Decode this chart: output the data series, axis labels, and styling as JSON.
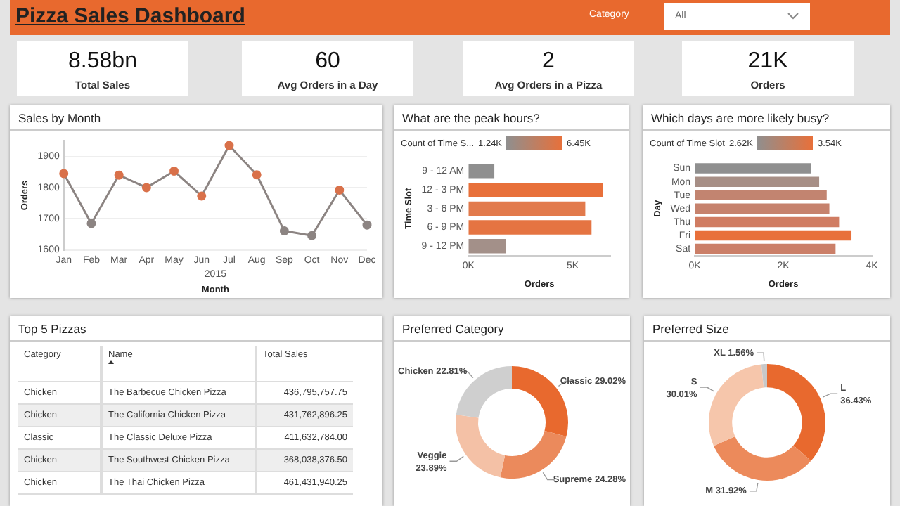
{
  "chart_data": [
    {
      "type": "other",
      "title": "Pizza Sales Dashboard",
      "annotations": [
        "Category",
        "All",
        "8.58bn",
        "Total Sales",
        "60",
        "Avg Orders in a Day",
        "2",
        "Avg Orders in a Pizza",
        "21K",
        "Orders"
      ]
    },
    {
      "type": "line",
      "title": "Sales by Month",
      "xlabel": "Month",
      "ylabel": "Orders",
      "annotations": [
        "2015"
      ],
      "categories": [
        "Jan",
        "Feb",
        "Mar",
        "Apr",
        "May",
        "Jun",
        "Jul",
        "Aug",
        "Sep",
        "Oct",
        "Nov",
        "Dec"
      ],
      "values": [
        1845,
        1685,
        1840,
        1800,
        1853,
        1773,
        1935,
        1841,
        1661,
        1646,
        1792,
        1680
      ],
      "color": "#8c8482",
      "colors": [
        "#d9714a",
        "#8c8482",
        "#d9714a",
        "#d9714a",
        "#d9714a",
        "#d9714a",
        "#d9714a",
        "#d9714a",
        "#8c8482",
        "#8c8482",
        "#d9714a",
        "#8c8482"
      ],
      "ylim": [
        1600,
        1950
      ],
      "yticks": [
        1600,
        1700,
        1800,
        1900
      ],
      "grid": "y",
      "marker": "circle",
      "legend": false
    },
    {
      "type": "bar",
      "orientation": "horizontal",
      "title": "What are the peak hours?",
      "xlabel": "Orders",
      "ylabel": "Time Slot",
      "clabel": "Count of Time S...",
      "annotations": [
        "1.24K",
        "6.45K"
      ],
      "categories": [
        "9 - 12 AM",
        "12 - 3 PM",
        "3 - 6 PM",
        "6 - 9 PM",
        "9 - 12 PM"
      ],
      "values": [
        1240,
        6450,
        5600,
        5900,
        1800
      ],
      "colors": [
        "#8f8f8f",
        "#e8703a",
        "#e27a4c",
        "#e57442",
        "#a39089"
      ],
      "xlim": [
        0,
        6800
      ],
      "xticks": [
        {
          "value": 0,
          "label": "0K"
        },
        {
          "value": 5000,
          "label": "5K"
        }
      ],
      "grid": false,
      "legend": false
    },
    {
      "type": "bar",
      "orientation": "horizontal",
      "title": "Which days are more likely busy?",
      "xlabel": "Orders",
      "ylabel": "Day",
      "clabel": "Count of Time Slot",
      "annotations": [
        "2.62K",
        "3.54K"
      ],
      "categories": [
        "Sun",
        "Mon",
        "Tue",
        "Wed",
        "Thu",
        "Fri",
        "Sat"
      ],
      "values": [
        2620,
        2810,
        2980,
        3040,
        3260,
        3540,
        3180
      ],
      "colors": [
        "#8f8f8f",
        "#a78f86",
        "#c28470",
        "#c6826d",
        "#d07c62",
        "#e8703a",
        "#cb7f68"
      ],
      "xlim": [
        0,
        4000
      ],
      "xticks": [
        {
          "value": 0,
          "label": "0K"
        },
        {
          "value": 2000,
          "label": "2K"
        },
        {
          "value": 4000,
          "label": "4K"
        }
      ],
      "grid": false,
      "legend": false
    },
    {
      "type": "other",
      "title": "Top 5 Pizzas",
      "annotations": [
        "Category",
        "Name",
        "Total Sales",
        "Chicken",
        "The Barbecue Chicken Pizza",
        "436,795,757.75",
        "Chicken",
        "The California Chicken Pizza",
        "431,762,896.25",
        "Classic",
        "The Classic Deluxe Pizza",
        "411,632,784.00",
        "Chicken",
        "The Southwest Chicken Pizza",
        "368,038,376.50",
        "Chicken",
        "The Thai Chicken Pizza",
        "461,431,940.25"
      ]
    },
    {
      "type": "donut",
      "title": "Preferred Category",
      "categories": [
        "Classic",
        "Supreme",
        "Veggie",
        "Chicken"
      ],
      "values": [
        29.02,
        24.28,
        23.89,
        22.81
      ],
      "value_labels": [
        "29.02%",
        "24.28%",
        "23.89%",
        "22.81%"
      ],
      "colors": [
        "#e8692e",
        "#eb8a5c",
        "#f4c1a6",
        "#cfcfcf"
      ],
      "legend": false
    },
    {
      "type": "donut",
      "title": "Preferred Size",
      "categories": [
        "L",
        "M",
        "S",
        "XL"
      ],
      "values": [
        36.43,
        31.92,
        30.01,
        1.56
      ],
      "value_labels": [
        "36.43%",
        "31.92%",
        "30.01%",
        "1.56%"
      ],
      "colors": [
        "#e8692e",
        "#ec8a5b",
        "#f6c6ab",
        "#c8c8c8"
      ],
      "legend": false
    }
  ]
}
